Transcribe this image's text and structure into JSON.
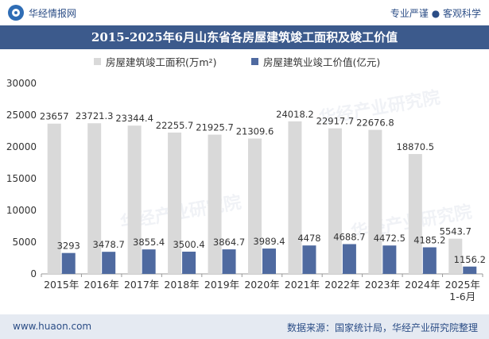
{
  "header": {
    "brand": "华经情报网",
    "tags": "专业严谨 ● 客观科学"
  },
  "watermarks": [
    "华经产业研究院",
    "华经产业研究院",
    "华经产业研究院"
  ],
  "chart_data": {
    "type": "bar",
    "title": "2015-2025年6月山东省各房屋建筑竣工面积及竣工价值",
    "categories": [
      "2015年",
      "2016年",
      "2017年",
      "2018年",
      "2019年",
      "2020年",
      "2021年",
      "2022年",
      "2023年",
      "2024年",
      "2025年\n1-6月"
    ],
    "series": [
      {
        "name": "房屋建筑竣工面积(万m²)",
        "color": "#d9d9d9",
        "values": [
          23657,
          23721.3,
          23344.4,
          22255.7,
          21925.7,
          21309.6,
          24018.2,
          22917.7,
          22676.8,
          18870.5,
          5543.7
        ],
        "labels": [
          "23657",
          "23721.3",
          "23344.4",
          "22255.7",
          "21925.7",
          "21309.6",
          "24018.2",
          "22917.7",
          "22676.8",
          "18870.5",
          "5543.7"
        ]
      },
      {
        "name": "房屋建筑业竣工价值(亿元)",
        "color": "#4f6aa0",
        "values": [
          3293,
          3478.7,
          3855.4,
          3500.4,
          3864.7,
          3989.4,
          4478,
          4688.7,
          4472.5,
          4185.2,
          1156.2
        ],
        "labels": [
          "3293",
          "3478.7",
          "3855.4",
          "3500.4",
          "3864.7",
          "3989.4",
          "4478",
          "4688.7",
          "4472.5",
          "4185.2",
          "1156.2"
        ]
      }
    ],
    "yticks": [
      "0",
      "5000",
      "10000",
      "15000",
      "20000",
      "25000",
      "30000"
    ],
    "ylim": [
      0,
      30000
    ],
    "xlabel": "",
    "ylabel": "",
    "grid": false,
    "legend": "top-center"
  },
  "footer": {
    "url": "www.huaon.com",
    "source": "数据来源：国家统计局，华经产业研究院整理"
  }
}
